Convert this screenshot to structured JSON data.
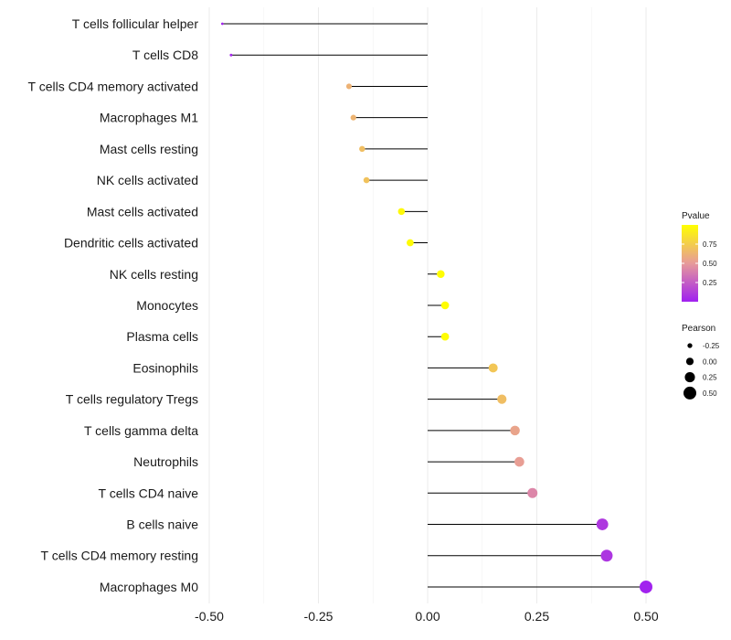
{
  "chart_data": {
    "type": "lollipop",
    "title": "",
    "xlabel": "",
    "ylabel": "",
    "xlim": [
      -0.5,
      0.5
    ],
    "x_ticks": [
      "-0.50",
      "-0.25",
      "0.00",
      "0.25",
      "0.50"
    ],
    "x_tick_values": [
      -0.5,
      -0.25,
      0.0,
      0.25,
      0.5
    ],
    "grid": true,
    "categories": [
      "T cells follicular helper",
      "T cells CD8",
      "T cells CD4 memory activated",
      "Macrophages M1",
      "Mast cells resting",
      "NK cells activated",
      "Mast cells activated",
      "Dendritic cells activated",
      "NK cells resting",
      "Monocytes",
      "Plasma cells",
      "Eosinophils",
      "T cells regulatory  Tregs ",
      "T cells gamma delta",
      "Neutrophils",
      "T cells CD4 naive",
      "B cells naive",
      "T cells CD4 memory resting",
      "Macrophages M0"
    ],
    "pearson": [
      -0.47,
      -0.45,
      -0.18,
      -0.17,
      -0.15,
      -0.14,
      -0.06,
      -0.04,
      0.03,
      0.04,
      0.04,
      0.15,
      0.17,
      0.2,
      0.21,
      0.24,
      0.4,
      0.41,
      0.5
    ],
    "pvalue": [
      0.02,
      0.03,
      0.62,
      0.63,
      0.68,
      0.7,
      0.97,
      0.98,
      0.99,
      0.99,
      0.99,
      0.72,
      0.68,
      0.55,
      0.52,
      0.42,
      0.1,
      0.09,
      0.01
    ],
    "legend_color": {
      "title": "Pvalue",
      "ticks": [
        "0.75",
        "0.50",
        "0.25"
      ],
      "tick_values": [
        0.75,
        0.5,
        0.25
      ],
      "range": [
        0.0,
        1.0
      ],
      "low_color": "#a020f0",
      "mid_color": "#e79a9a",
      "high_color": "#ffff00"
    },
    "legend_size": {
      "title": "Pearson",
      "ticks": [
        "-0.25",
        "0.00",
        "0.25",
        "0.50"
      ],
      "tick_values": [
        -0.25,
        0.0,
        0.25,
        0.5
      ]
    },
    "legend_position": "right",
    "colors": {
      "segment": "#000000",
      "grid": "#ebebeb",
      "background": "#ffffff"
    }
  }
}
